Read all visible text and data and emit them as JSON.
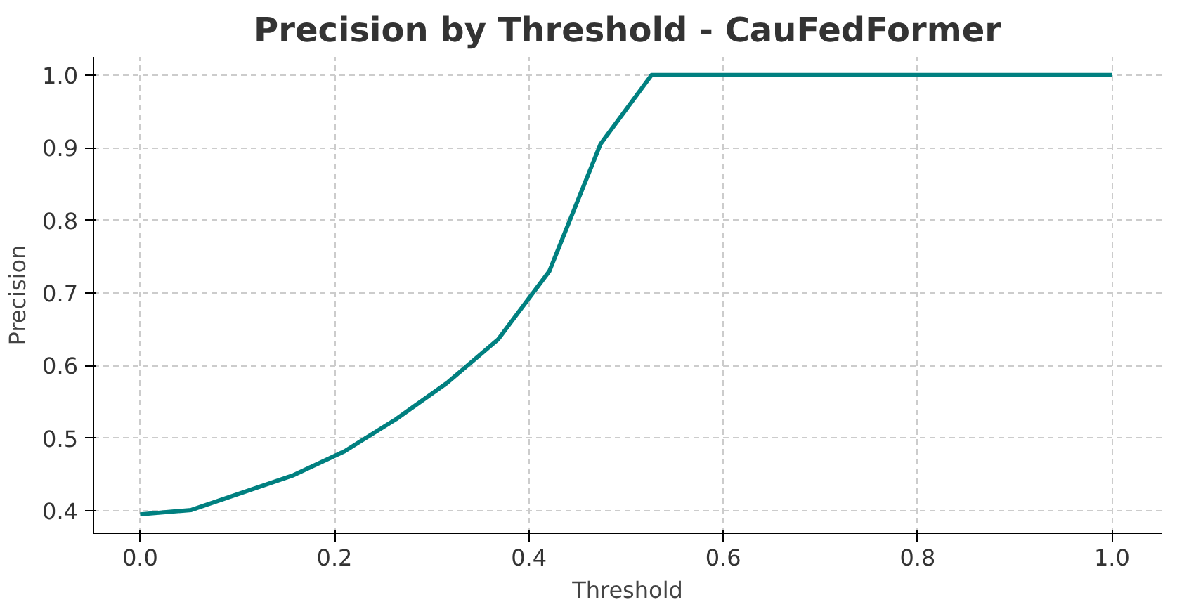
{
  "chart_data": {
    "type": "line",
    "title": "Precision by Threshold - CauFedFormer",
    "xlabel": "Threshold",
    "ylabel": "Precision",
    "x": [
      0.0,
      0.0526,
      0.1053,
      0.1579,
      0.2105,
      0.2632,
      0.3158,
      0.3684,
      0.4211,
      0.4737,
      0.5263,
      0.5789,
      0.6316,
      0.6842,
      0.7368,
      0.7895,
      0.8421,
      0.8947,
      0.9474,
      1.0
    ],
    "series": [
      {
        "color": "#008080",
        "values": [
          0.395,
          0.401,
          0.425,
          0.449,
          0.482,
          0.526,
          0.576,
          0.636,
          0.73,
          0.905,
          1.0,
          1.0,
          1.0,
          1.0,
          1.0,
          1.0,
          1.0,
          1.0,
          1.0,
          1.0
        ]
      }
    ],
    "xlim": [
      -0.048,
      1.051
    ],
    "ylim": [
      0.369,
      1.025
    ],
    "xticks": [
      {
        "value": 0.0,
        "label": "0.0"
      },
      0.2,
      0.4,
      0.6,
      0.8,
      {
        "value": 1.0,
        "label": "1.0"
      }
    ],
    "yticks": [
      0.4,
      0.5,
      0.6,
      0.7,
      0.8,
      0.9,
      {
        "value": 1.0,
        "label": "1.0"
      }
    ],
    "grid": true,
    "line_style": "solid"
  }
}
